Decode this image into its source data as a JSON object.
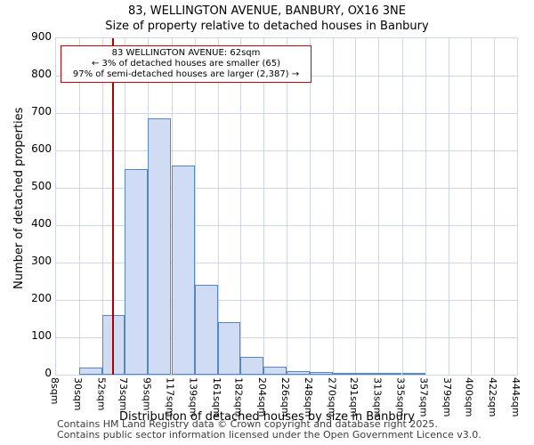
{
  "chart_data": {
    "type": "bar",
    "title": "83, WELLINGTON AVENUE, BANBURY, OX16 3NE",
    "subtitle": "Size of property relative to detached houses in Banbury",
    "xlabel": "Distribution of detached houses by size in Banbury",
    "ylabel": "Number of detached properties",
    "ylim": [
      0,
      900
    ],
    "ytick_step": 100,
    "grid": true,
    "bin_edges_sqm": [
      8,
      30,
      52,
      73,
      95,
      117,
      139,
      161,
      182,
      204,
      226,
      248,
      270,
      291,
      313,
      335,
      357,
      379,
      400,
      422,
      444
    ],
    "bin_labels": [
      "8sqm",
      "30sqm",
      "52sqm",
      "73sqm",
      "95sqm",
      "117sqm",
      "139sqm",
      "161sqm",
      "182sqm",
      "204sqm",
      "226sqm",
      "248sqm",
      "270sqm",
      "291sqm",
      "313sqm",
      "335sqm",
      "357sqm",
      "379sqm",
      "400sqm",
      "422sqm",
      "444sqm"
    ],
    "values": [
      0,
      20,
      160,
      550,
      685,
      560,
      240,
      140,
      48,
      22,
      10,
      6,
      4,
      2,
      2,
      1,
      0,
      0,
      0,
      0
    ],
    "marker": {
      "value_sqm": 62,
      "color": "#b00000"
    },
    "annotation": {
      "line1": "83 WELLINGTON AVENUE: 62sqm",
      "line2": "← 3% of detached houses are smaller (65)",
      "line3": "97% of semi-detached houses are larger (2,387) →"
    },
    "colors": {
      "bar_fill": "#cfdcf3",
      "bar_border": "#5586c5",
      "grid": "#cdd6e8"
    }
  },
  "footer": {
    "line1": "Contains HM Land Registry data © Crown copyright and database right 2025.",
    "line2": "Contains public sector information licensed under the Open Government Licence v3.0."
  }
}
